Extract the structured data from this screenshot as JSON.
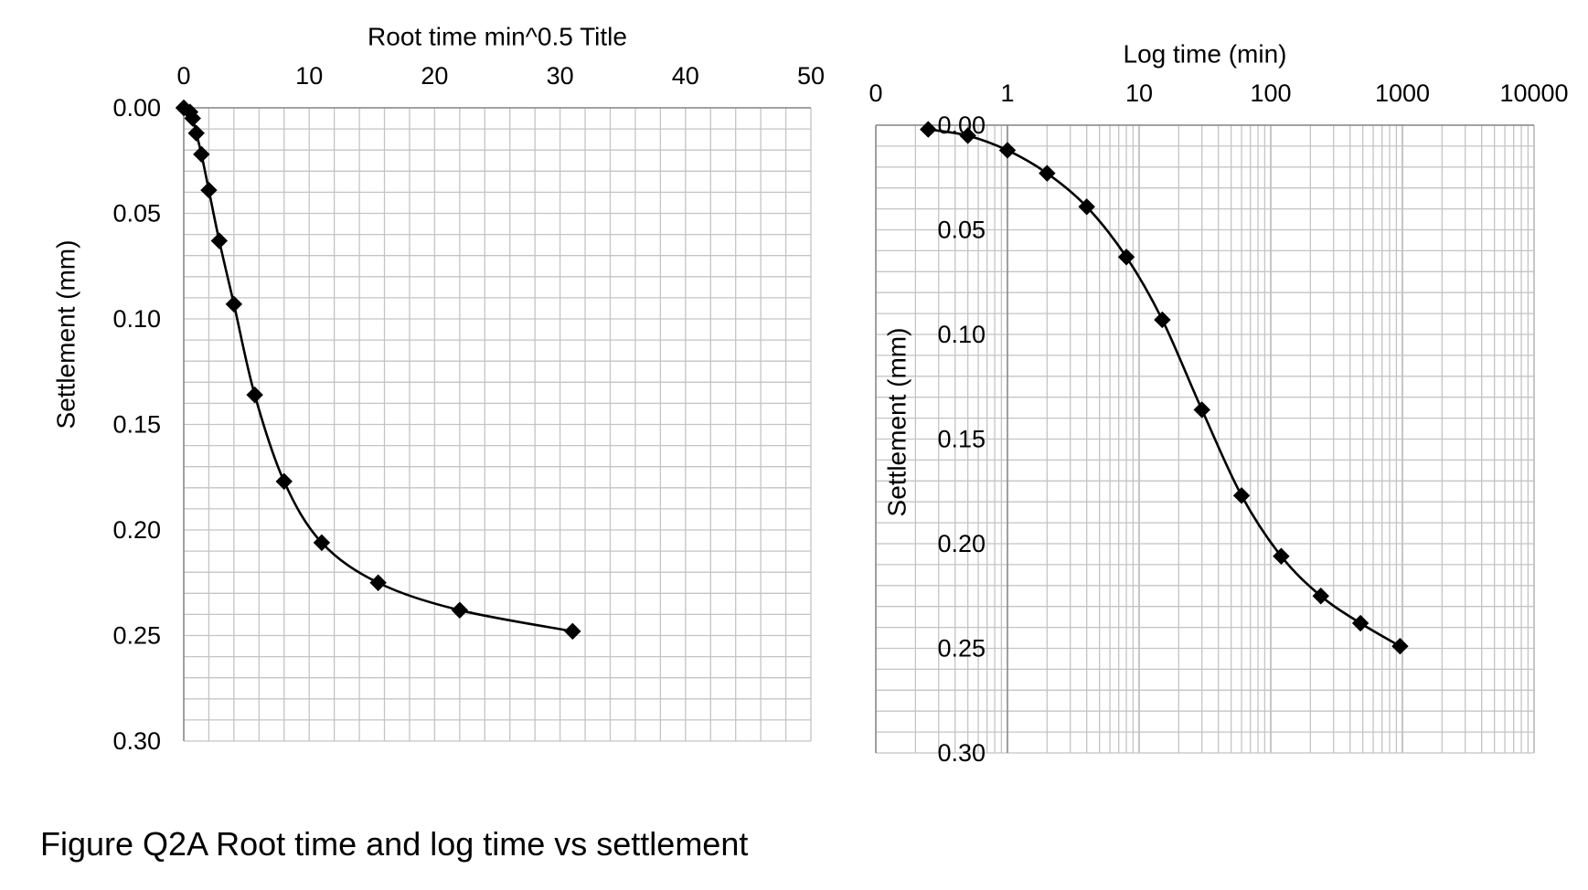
{
  "caption": "Figure Q2A Root time and log time vs settlement",
  "chart_data": [
    {
      "type": "scatter",
      "title": "Root time min^0.5 Title",
      "xlabel": "Root time min^0.5 Title",
      "ylabel": "Settlement (mm)",
      "xlim": [
        0,
        50
      ],
      "ylim": [
        0,
        0.3
      ],
      "y_inverted": true,
      "x_axis_position": "top",
      "x_major_ticks": [
        0,
        10,
        20,
        30,
        40,
        50
      ],
      "x_tick_labels": [
        "0",
        "10",
        "20",
        "30",
        "40",
        "50"
      ],
      "y_major_ticks": [
        0,
        0.05,
        0.1,
        0.15,
        0.2,
        0.25,
        0.3
      ],
      "y_tick_labels": [
        "0.00",
        "0.05",
        "0.10",
        "0.15",
        "0.20",
        "0.25",
        "0.30"
      ],
      "x_minor_step": 2,
      "y_minor_step": 0.01,
      "grid": true,
      "marker": "diamond",
      "line": "smooth",
      "series": [
        {
          "name": "Settlement",
          "x": [
            0,
            0.5,
            0.71,
            1.0,
            1.41,
            2.0,
            2.83,
            4.0,
            5.66,
            8.0,
            11.0,
            15.5,
            22.0,
            31.0
          ],
          "y": [
            0.0,
            0.002,
            0.005,
            0.012,
            0.022,
            0.039,
            0.063,
            0.093,
            0.136,
            0.177,
            0.206,
            0.225,
            0.238,
            0.248
          ]
        }
      ]
    },
    {
      "type": "scatter",
      "title": "Log time (min)",
      "xlabel": "Log time (min)",
      "ylabel": "Settlement (mm)",
      "x_scale": "log",
      "xlim": [
        0.1,
        10000
      ],
      "ylim": [
        0,
        0.3
      ],
      "y_inverted": true,
      "x_axis_position": "top",
      "x_major_ticks": [
        0.1,
        1,
        10,
        100,
        1000,
        10000
      ],
      "x_tick_labels": [
        "0",
        "1",
        "10",
        "100",
        "1000",
        "10000"
      ],
      "y_major_ticks": [
        0,
        0.05,
        0.1,
        0.15,
        0.2,
        0.25,
        0.3
      ],
      "y_tick_labels": [
        "0.00",
        "0.05",
        "0.10",
        "0.15",
        "0.20",
        "0.25",
        "0.30"
      ],
      "y_minor_step": 0.01,
      "grid": true,
      "marker": "diamond",
      "line": "smooth",
      "series": [
        {
          "name": "Settlement",
          "x": [
            0.25,
            0.5,
            1,
            2,
            4,
            8,
            15,
            30,
            60,
            120,
            240,
            480,
            960
          ],
          "y": [
            0.002,
            0.005,
            0.012,
            0.023,
            0.039,
            0.063,
            0.093,
            0.136,
            0.177,
            0.206,
            0.225,
            0.238,
            0.249
          ]
        }
      ]
    }
  ]
}
